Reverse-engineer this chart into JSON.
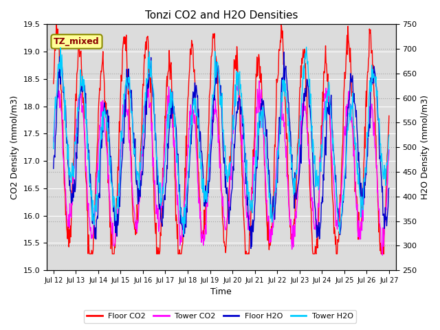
{
  "title": "Tonzi CO2 and H2O Densities",
  "xlabel": "Time",
  "ylabel_left": "CO2 Density (mmol/m3)",
  "ylabel_right": "H2O Density (mmol/m3)",
  "co2_ylim": [
    15.0,
    19.5
  ],
  "h2o_ylim": [
    250,
    750
  ],
  "co2_yticks": [
    15.0,
    15.5,
    16.0,
    16.5,
    17.0,
    17.5,
    18.0,
    18.5,
    19.0,
    19.5
  ],
  "h2o_yticks": [
    250,
    300,
    350,
    400,
    450,
    500,
    550,
    600,
    650,
    700,
    750
  ],
  "xtick_labels": [
    "Jul 12",
    "Jul 13",
    "Jul 14",
    "Jul 15",
    "Jul 16",
    "Jul 17",
    "Jul 18",
    "Jul 19",
    "Jul 20",
    "Jul 21",
    "Jul 22",
    "Jul 23",
    "Jul 24",
    "Jul 25",
    "Jul 26",
    "Jul 27"
  ],
  "colors": {
    "floor_co2": "#FF0000",
    "tower_co2": "#FF00FF",
    "floor_h2o": "#0000CC",
    "tower_h2o": "#00CCFF"
  },
  "annotation_text": "TZ_mixed",
  "annotation_color": "#8B0000",
  "annotation_bg": "#FFFF99",
  "annotation_border": "#8B8B00",
  "legend_labels": [
    "Floor CO2",
    "Tower CO2",
    "Floor H2O",
    "Tower H2O"
  ],
  "background_color": "#DCDCDC",
  "n_days": 15,
  "n_points_per_day": 48
}
